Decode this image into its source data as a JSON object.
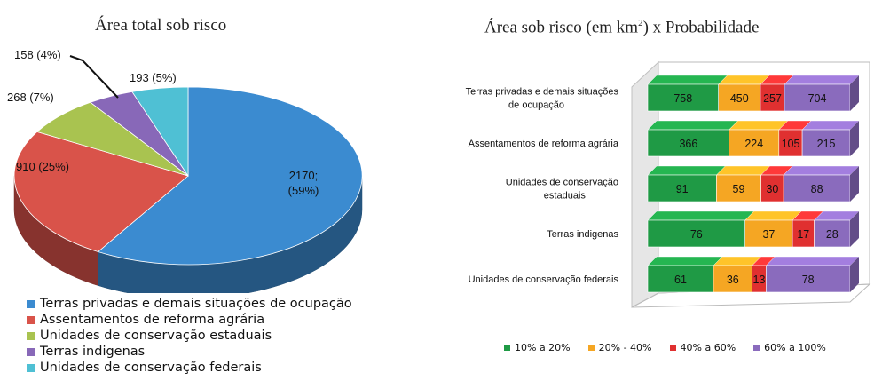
{
  "pie_title": "Área total sob risco",
  "bar_title_main": "Área sob risco (em km",
  "bar_title_sup": "2",
  "bar_title_tail": ") x Probabilidade",
  "chart_data": [
    {
      "type": "pie",
      "title": "Área total sob risco",
      "labels": [
        "Terras privadas e demais situações de ocupação",
        "Assentamentos de reforma agrária",
        "Unidades de conservação estaduais",
        "Terras indigenas",
        "Unidades de conservação federais"
      ],
      "values": [
        2170,
        910,
        268,
        158,
        193
      ],
      "percents": [
        59,
        25,
        7,
        4,
        5
      ],
      "data_labels": [
        "2170;\n(59%)",
        "910 (25%)",
        "268 (7%)",
        "158 (4%)",
        "193 (5%)"
      ],
      "colors": [
        "#3b8bd0",
        "#d9534a",
        "#a9c350",
        "#8868b8",
        "#4fc0d4"
      ],
      "style": "3d-pie",
      "legend": "bottom"
    },
    {
      "type": "bar",
      "orientation": "horizontal",
      "stacked": true,
      "title": "Área sob risco (em km²) x Probabilidade",
      "categories": [
        "Terras privadas e demais situações de ocupação",
        "Assentamentos de reforma agrária",
        "Unidades de conservação estaduais",
        "Terras indigenas",
        "Unidades de conservação federais"
      ],
      "category_label_lines": [
        [
          "Terras privadas e demais situações",
          "de ocupação"
        ],
        [
          "Assentamentos de reforma agrária"
        ],
        [
          "Unidades de conservação",
          "estaduais"
        ],
        [
          "Terras indigenas"
        ],
        [
          "Unidades de conservação federais"
        ]
      ],
      "series": [
        {
          "name": "10% a 20%",
          "color": "#1f9a45",
          "values": [
            758,
            366,
            91,
            76,
            61
          ]
        },
        {
          "name": "20% - 40%",
          "color": "#f5a623",
          "values": [
            450,
            224,
            59,
            37,
            36
          ]
        },
        {
          "name": "40% a 60%",
          "color": "#e03030",
          "values": [
            257,
            105,
            30,
            17,
            13
          ]
        },
        {
          "name": "60% a 100%",
          "color": "#8a6bbd",
          "values": [
            704,
            215,
            88,
            28,
            78
          ]
        }
      ],
      "normalized": true,
      "legend": "bottom",
      "grid": false
    }
  ]
}
